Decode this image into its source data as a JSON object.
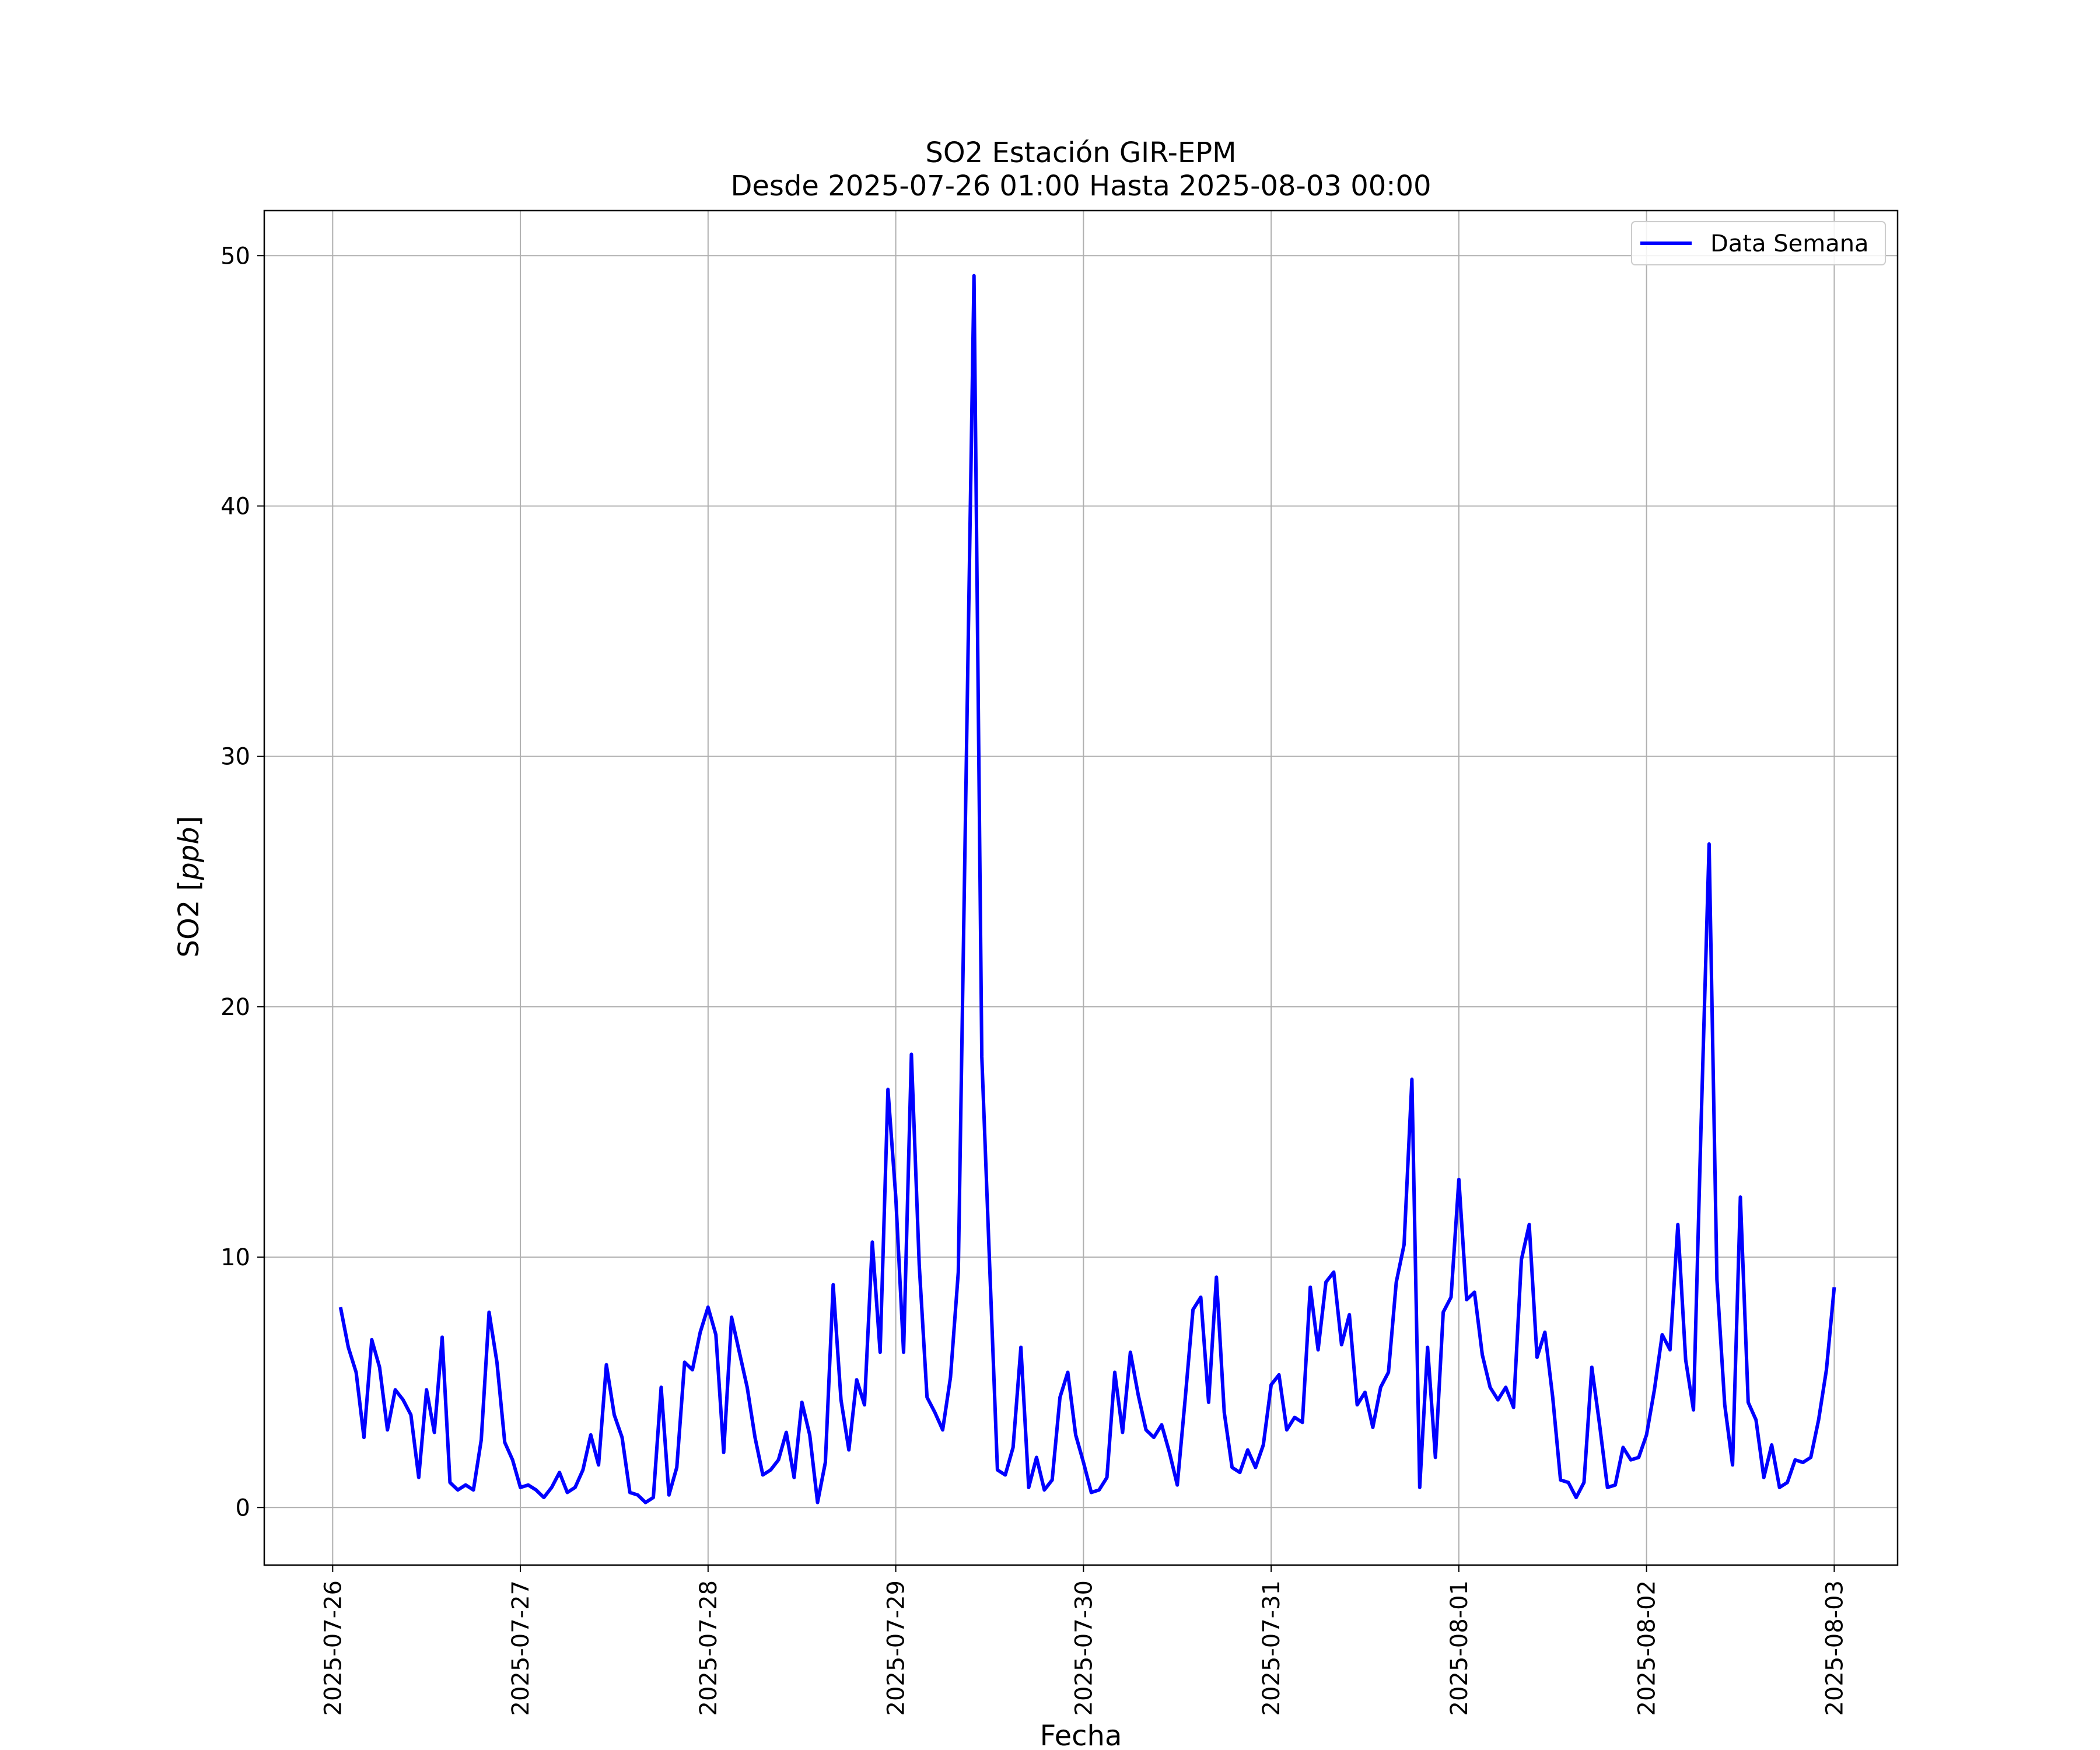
{
  "chart_data": {
    "type": "line",
    "title": "SO2 Estación GIR-EPM",
    "subtitle": "Desde 2025-07-26 01:00 Hasta 2025-08-03 00:00",
    "xlabel": "Fecha",
    "ylabel": "SO2 [ppb]",
    "ylabel_prefix": "SO2 [",
    "ylabel_unit": "ppb",
    "ylabel_suffix": "]",
    "x_start": "2025-07-26 01:00",
    "x_end": "2025-08-03 00:00",
    "x_interval_hours": 1,
    "xlim": [
      "2025-07-25 15:15",
      "2025-08-03 08:06"
    ],
    "ylim": [
      -2.3,
      51.8
    ],
    "x_ticks": [
      "2025-07-26",
      "2025-07-27",
      "2025-07-28",
      "2025-07-29",
      "2025-07-30",
      "2025-07-31",
      "2025-08-01",
      "2025-08-02",
      "2025-08-03"
    ],
    "y_ticks": [
      0,
      10,
      20,
      30,
      40,
      50
    ],
    "grid": true,
    "legend_position": "upper right",
    "colors": {
      "series": "#0000ff",
      "grid": "#b0b0b0",
      "axes": "#000000"
    },
    "series": [
      {
        "name": "Data Semana",
        "values": [
          8.0,
          6.4,
          5.4,
          2.8,
          6.7,
          5.6,
          3.1,
          4.7,
          4.3,
          3.7,
          1.2,
          4.7,
          3.0,
          6.8,
          1.0,
          0.7,
          0.9,
          0.7,
          2.7,
          7.8,
          5.8,
          2.6,
          1.9,
          0.8,
          0.9,
          0.7,
          0.4,
          0.8,
          1.4,
          0.6,
          0.8,
          1.5,
          2.9,
          1.7,
          5.7,
          3.7,
          2.8,
          0.6,
          0.5,
          0.2,
          0.4,
          4.8,
          0.5,
          1.6,
          5.8,
          5.5,
          7.0,
          8.0,
          6.9,
          2.2,
          7.6,
          6.2,
          4.8,
          2.8,
          1.3,
          1.5,
          1.9,
          3.0,
          1.2,
          4.2,
          2.9,
          0.2,
          1.8,
          8.9,
          4.3,
          2.3,
          5.1,
          4.1,
          10.6,
          6.2,
          16.7,
          12.4,
          6.2,
          18.1,
          9.7,
          4.4,
          3.8,
          3.1,
          5.2,
          9.4,
          29.4,
          49.2,
          18.0,
          9.7,
          1.5,
          1.3,
          2.4,
          6.4,
          0.8,
          2.0,
          0.7,
          1.1,
          4.4,
          5.4,
          2.9,
          1.8,
          0.6,
          0.7,
          1.2,
          5.4,
          3.0,
          6.2,
          4.5,
          3.1,
          2.8,
          3.3,
          2.2,
          0.9,
          4.3,
          7.9,
          8.4,
          4.2,
          9.2,
          3.8,
          1.6,
          1.4,
          2.3,
          1.6,
          2.5,
          4.9,
          5.3,
          3.1,
          3.6,
          3.4,
          8.8,
          6.3,
          9.0,
          9.4,
          6.5,
          7.7,
          4.1,
          4.6,
          3.2,
          4.8,
          5.4,
          9.0,
          10.5,
          17.1,
          0.8,
          6.4,
          2.0,
          7.8,
          8.4,
          13.1,
          8.3,
          8.6,
          6.1,
          4.8,
          4.3,
          4.8,
          4.0,
          9.9,
          11.3,
          6.0,
          7.0,
          4.4,
          1.1,
          1.0,
          0.4,
          1.0,
          5.6,
          3.3,
          0.8,
          0.9,
          2.4,
          1.9,
          2.0,
          2.9,
          4.7,
          6.9,
          6.3,
          11.3,
          5.9,
          3.9,
          15.6,
          26.5,
          9.1,
          4.1,
          1.7,
          12.4,
          4.2,
          3.5,
          1.2,
          2.5,
          0.8,
          1.0,
          1.9,
          1.8,
          2.0,
          3.5,
          5.5,
          8.8
        ]
      }
    ]
  }
}
